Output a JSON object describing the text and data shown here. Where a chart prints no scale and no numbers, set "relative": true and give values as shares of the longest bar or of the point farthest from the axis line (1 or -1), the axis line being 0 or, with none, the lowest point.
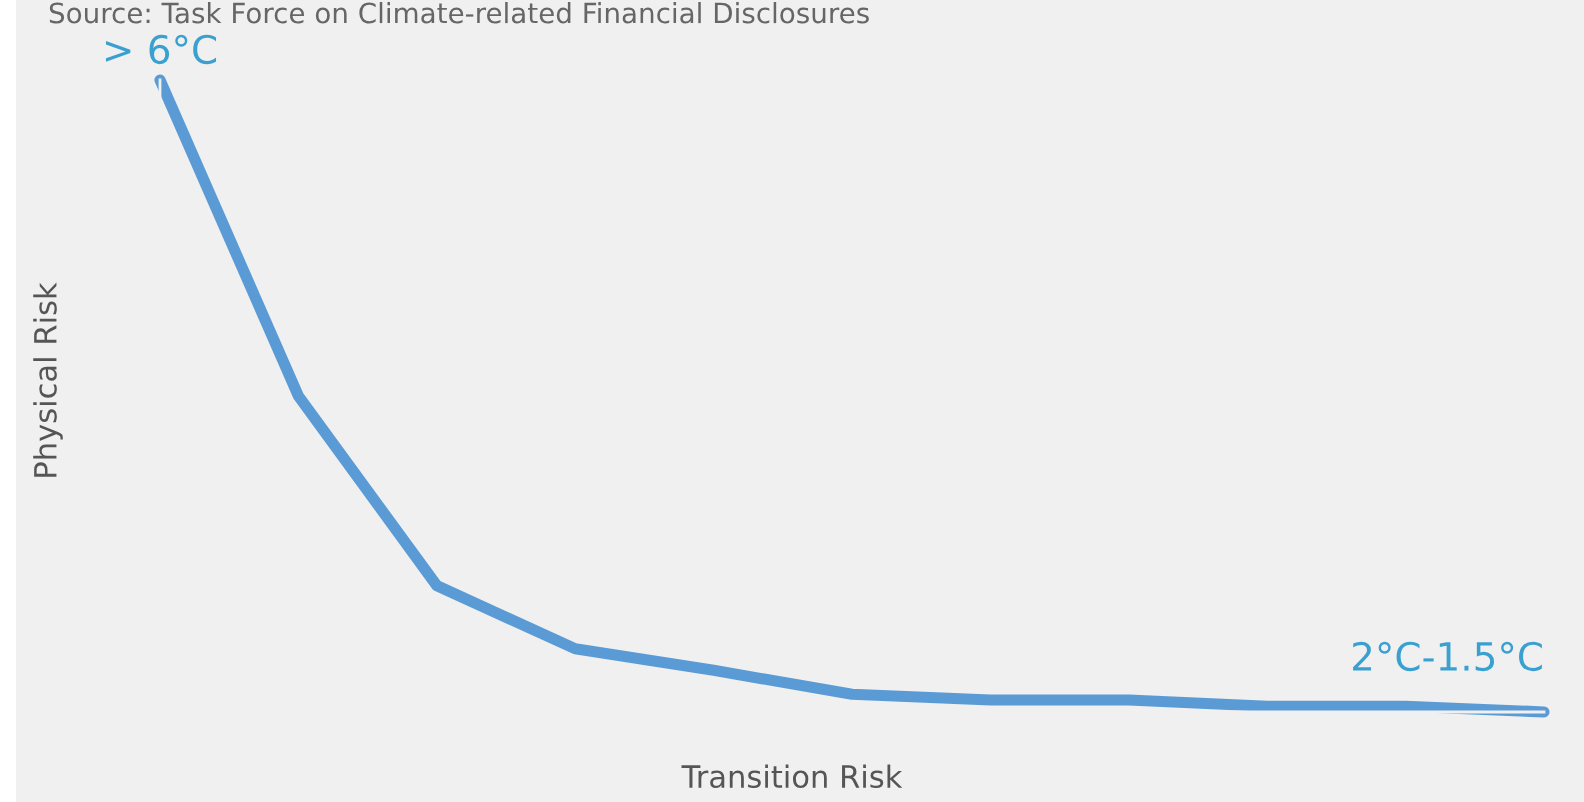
{
  "chart_data": {
    "type": "line",
    "relative": true,
    "xlabel": "Transition Risk",
    "ylabel": "Physical Risk",
    "categories": [
      null,
      null,
      null,
      null,
      null,
      null,
      null,
      null,
      null,
      null,
      null
    ],
    "series": [
      {
        "color": "#5b9bd5",
        "values": [
          1,
          0.5,
          0.2,
          0.1,
          0.066,
          0.028,
          0.019,
          0.019,
          0.009,
          0.009,
          0
        ]
      }
    ],
    "annotations": [
      "Source: Task Force on Climate-related Financial Disclosures",
      {
        "text": "> 6°C",
        "y": 1
      },
      {
        "text": "2°C-1.5°C",
        "y": 0
      }
    ],
    "grid": false,
    "marker": "none",
    "line_style": "solid"
  }
}
